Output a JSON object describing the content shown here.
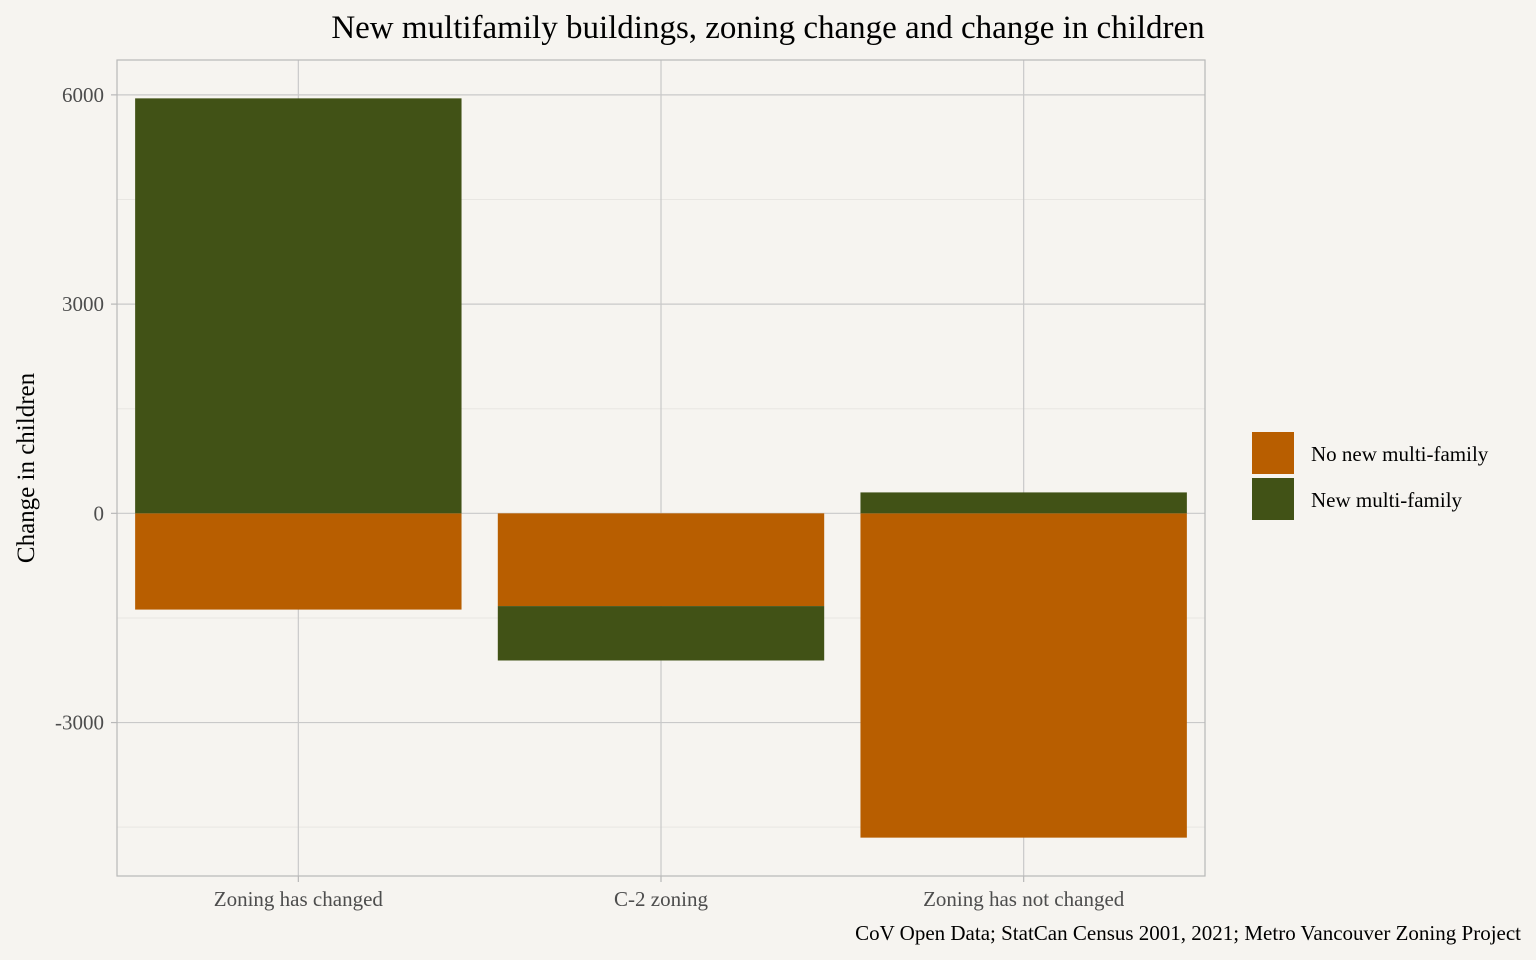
{
  "chart_data": {
    "type": "bar",
    "stacked": true,
    "title": "New multifamily buildings, zoning change and change in children",
    "subtitle": "",
    "xlabel": "",
    "ylabel": "Change in children",
    "caption": "CoV Open Data; StatCan Census 2001, 2021; Metro Vancouver Zoning Project",
    "categories": [
      "Zoning has changed",
      "C-2 zoning",
      "Zoning has not changed"
    ],
    "series": [
      {
        "name": "No new multi-family",
        "color": "#b85e00",
        "values": [
          -1380,
          -1330,
          -4650
        ]
      },
      {
        "name": "New multi-family",
        "color": "#415216",
        "values": [
          5950,
          -780,
          300
        ]
      }
    ],
    "ylim": [
      -5200,
      6500
    ],
    "yticks": [
      -3000,
      0,
      3000,
      6000
    ],
    "ytick_labels": [
      "-3000",
      "0",
      "3000",
      "6000"
    ],
    "yminor": [
      -4500,
      -1500,
      1500,
      4500
    ],
    "grid": true,
    "legend_position": "right",
    "legend": [
      {
        "label": "No new multi-family",
        "color": "#b85e00"
      },
      {
        "label": "New multi-family",
        "color": "#415216"
      }
    ],
    "background": "#f6f4f0"
  }
}
